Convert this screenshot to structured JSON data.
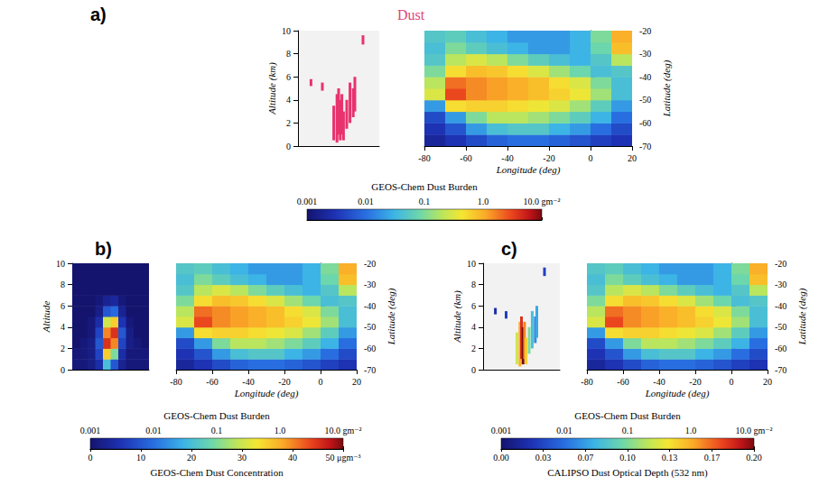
{
  "chart_data": [
    {
      "type": "heatmap",
      "panel": "a)",
      "title": "Dust",
      "x_label": "Longitude (deg)",
      "y_label": "Latitude (deg)",
      "xlim": [
        -80,
        20
      ],
      "xticks": [
        -80,
        -60,
        -40,
        -20,
        0,
        20
      ],
      "ylim": [
        -70,
        -20
      ],
      "yticks": [
        -70,
        -60,
        -50,
        -40,
        -30,
        -20
      ],
      "x_edges": [
        -80,
        -70,
        -60,
        -50,
        -40,
        -30,
        -20,
        -10,
        0,
        10,
        20
      ],
      "y_edges": [
        -70,
        -65,
        -60,
        -55,
        -50,
        -45,
        -40,
        -35,
        -30,
        -25,
        -20
      ],
      "values": [
        [
          0.002,
          0.003,
          0.005,
          0.008,
          0.01,
          0.01,
          0.008,
          0.006,
          0.004,
          0.003
        ],
        [
          0.003,
          0.006,
          0.02,
          0.04,
          0.05,
          0.05,
          0.03,
          0.02,
          0.01,
          0.005
        ],
        [
          0.005,
          0.02,
          0.1,
          0.2,
          0.2,
          0.15,
          0.1,
          0.06,
          0.03,
          0.01
        ],
        [
          0.02,
          0.5,
          0.6,
          0.6,
          0.5,
          0.4,
          0.3,
          0.15,
          0.06,
          0.02
        ],
        [
          0.3,
          3.0,
          1.5,
          1.2,
          1.0,
          0.8,
          0.6,
          0.4,
          0.15,
          0.04
        ],
        [
          0.2,
          2.0,
          1.5,
          1.2,
          1.0,
          0.8,
          0.5,
          0.3,
          0.1,
          0.04
        ],
        [
          0.1,
          0.5,
          0.8,
          0.7,
          0.5,
          0.3,
          0.15,
          0.08,
          0.04,
          0.05
        ],
        [
          0.05,
          0.2,
          0.3,
          0.2,
          0.1,
          0.06,
          0.04,
          0.03,
          0.05,
          0.2
        ],
        [
          0.04,
          0.1,
          0.06,
          0.04,
          0.03,
          0.02,
          0.02,
          0.03,
          0.08,
          0.8
        ],
        [
          0.05,
          0.06,
          0.04,
          0.03,
          0.02,
          0.02,
          0.02,
          0.03,
          0.1,
          1.0
        ]
      ],
      "curtain": {
        "type": "bar",
        "y_label": "Altitude (km)",
        "xlim": [
          -70,
          -20
        ],
        "ylim": [
          0,
          10
        ],
        "yticks": [
          0,
          2,
          4,
          6,
          8,
          10
        ],
        "tick_labels": "y",
        "x": [
          -62,
          -55,
          -48,
          -46,
          -45,
          -44,
          -43,
          -42,
          -40,
          -38,
          -36,
          -35,
          -30
        ],
        "bottom": [
          5.2,
          4.8,
          0.5,
          0.3,
          1.0,
          0.5,
          1.0,
          0.5,
          1.5,
          2.0,
          2.5,
          3.0,
          8.8
        ],
        "top": [
          5.8,
          5.5,
          3.5,
          4.5,
          5.0,
          4.0,
          4.5,
          3.0,
          4.0,
          5.5,
          5.0,
          6.0,
          9.6
        ],
        "color": "#e8336e"
      },
      "colorbars": [
        {
          "label": "GEOS-Chem Dust Burden",
          "lim": [
            0.001,
            10
          ],
          "log": true,
          "ticks": [
            0.001,
            0.01,
            0.1,
            {
              "value": 1,
              "label": "1.0"
            },
            {
              "value": 10,
              "label": "10.0 gm⁻²"
            }
          ]
        }
      ]
    },
    {
      "type": "heatmap",
      "panel": "b)",
      "x_label": "Longitude (deg)",
      "y_label": "Latitude (deg)",
      "xlim": [
        -80,
        20
      ],
      "xticks": [
        -80,
        -60,
        -40,
        -20,
        0,
        20
      ],
      "ylim": [
        -70,
        -20
      ],
      "yticks": [
        -70,
        -60,
        -50,
        -40,
        -30,
        -20
      ],
      "x_edges": [
        -80,
        -70,
        -60,
        -50,
        -40,
        -30,
        -20,
        -10,
        0,
        10,
        20
      ],
      "y_edges": [
        -70,
        -65,
        -60,
        -55,
        -50,
        -45,
        -40,
        -35,
        -30,
        -25,
        -20
      ],
      "values": [
        [
          0.002,
          0.003,
          0.005,
          0.008,
          0.01,
          0.01,
          0.008,
          0.006,
          0.004,
          0.003
        ],
        [
          0.003,
          0.006,
          0.02,
          0.04,
          0.05,
          0.05,
          0.03,
          0.02,
          0.01,
          0.005
        ],
        [
          0.005,
          0.02,
          0.1,
          0.2,
          0.2,
          0.15,
          0.1,
          0.06,
          0.03,
          0.01
        ],
        [
          0.02,
          0.5,
          0.6,
          0.6,
          0.5,
          0.4,
          0.3,
          0.15,
          0.06,
          0.02
        ],
        [
          0.3,
          3.0,
          1.5,
          1.2,
          1.0,
          0.8,
          0.6,
          0.4,
          0.15,
          0.04
        ],
        [
          0.2,
          2.0,
          1.5,
          1.2,
          1.0,
          0.8,
          0.5,
          0.3,
          0.1,
          0.04
        ],
        [
          0.1,
          0.5,
          0.8,
          0.7,
          0.5,
          0.3,
          0.15,
          0.08,
          0.04,
          0.05
        ],
        [
          0.05,
          0.2,
          0.3,
          0.2,
          0.1,
          0.06,
          0.04,
          0.03,
          0.05,
          0.2
        ],
        [
          0.04,
          0.1,
          0.06,
          0.04,
          0.03,
          0.02,
          0.02,
          0.03,
          0.08,
          0.8
        ],
        [
          0.05,
          0.06,
          0.04,
          0.03,
          0.02,
          0.02,
          0.02,
          0.03,
          0.1,
          1.0
        ]
      ],
      "curtain": {
        "type": "heatmap",
        "y_label": "Altitude",
        "xlim": [
          -70,
          -20
        ],
        "ylim": [
          0,
          10
        ],
        "yticks": [
          0,
          2,
          4,
          6,
          8,
          10
        ],
        "tick_labels": "y",
        "x_edges": [
          -70,
          -65,
          -60,
          -55,
          -50,
          -45,
          -40,
          -35,
          -30,
          -25,
          -20
        ],
        "y_edges": [
          0,
          1,
          2,
          3,
          4,
          5,
          6,
          7,
          8,
          9,
          10
        ],
        "values": [
          [
            1,
            1,
            2,
            5,
            20,
            10,
            3,
            1,
            1,
            1
          ],
          [
            1,
            1,
            2,
            8,
            35,
            25,
            5,
            1,
            1,
            1
          ],
          [
            0,
            1,
            2,
            10,
            45,
            40,
            8,
            2,
            1,
            0
          ],
          [
            0,
            0,
            1,
            8,
            40,
            45,
            10,
            2,
            0,
            0
          ],
          [
            0,
            0,
            1,
            5,
            30,
            35,
            6,
            1,
            0,
            0
          ],
          [
            0,
            0,
            0,
            2,
            10,
            12,
            3,
            0,
            0,
            0
          ],
          [
            0,
            0,
            0,
            1,
            3,
            4,
            1,
            0,
            0,
            0
          ],
          [
            0,
            0,
            0,
            0,
            0,
            0,
            0,
            0,
            0,
            0
          ],
          [
            0,
            0,
            0,
            0,
            0,
            0,
            0,
            0,
            0,
            0
          ],
          [
            0,
            0,
            0,
            0,
            0,
            0,
            0,
            0,
            0,
            0
          ]
        ]
      },
      "colorbars": [
        {
          "label": "GEOS-Chem Dust Burden",
          "lim": [
            0.001,
            10
          ],
          "log": true,
          "ticks": [
            0.001,
            0.01,
            0.1,
            {
              "value": 1,
              "label": "1.0"
            },
            {
              "value": 10,
              "label": "10.0 gm⁻²"
            }
          ]
        },
        {
          "label": "GEOS-Chem Dust Concentration",
          "lim": [
            0,
            50
          ],
          "ticks": [
            0,
            10,
            20,
            30,
            40,
            {
              "value": 50,
              "label": "50 μgm⁻³"
            }
          ]
        }
      ]
    },
    {
      "type": "heatmap",
      "panel": "c)",
      "x_label": "Longitude (deg)",
      "y_label": "Latitude (deg)",
      "xlim": [
        -80,
        20
      ],
      "xticks": [
        -80,
        -60,
        -40,
        -20,
        0,
        20
      ],
      "ylim": [
        -70,
        -20
      ],
      "yticks": [
        -70,
        -60,
        -50,
        -40,
        -30,
        -20
      ],
      "x_edges": [
        -80,
        -70,
        -60,
        -50,
        -40,
        -30,
        -20,
        -10,
        0,
        10,
        20
      ],
      "y_edges": [
        -70,
        -65,
        -60,
        -55,
        -50,
        -45,
        -40,
        -35,
        -30,
        -25,
        -20
      ],
      "values": [
        [
          0.002,
          0.003,
          0.005,
          0.008,
          0.01,
          0.01,
          0.008,
          0.006,
          0.004,
          0.003
        ],
        [
          0.003,
          0.006,
          0.02,
          0.04,
          0.05,
          0.05,
          0.03,
          0.02,
          0.01,
          0.005
        ],
        [
          0.005,
          0.02,
          0.1,
          0.2,
          0.2,
          0.15,
          0.1,
          0.06,
          0.03,
          0.01
        ],
        [
          0.02,
          0.5,
          0.6,
          0.6,
          0.5,
          0.4,
          0.3,
          0.15,
          0.06,
          0.02
        ],
        [
          0.3,
          3.0,
          1.5,
          1.2,
          1.0,
          0.8,
          0.6,
          0.4,
          0.15,
          0.04
        ],
        [
          0.2,
          2.0,
          1.5,
          1.2,
          1.0,
          0.8,
          0.5,
          0.3,
          0.1,
          0.04
        ],
        [
          0.1,
          0.5,
          0.8,
          0.7,
          0.5,
          0.3,
          0.15,
          0.08,
          0.04,
          0.05
        ],
        [
          0.05,
          0.2,
          0.3,
          0.2,
          0.1,
          0.06,
          0.04,
          0.03,
          0.05,
          0.2
        ],
        [
          0.04,
          0.1,
          0.06,
          0.04,
          0.03,
          0.02,
          0.02,
          0.03,
          0.08,
          0.8
        ],
        [
          0.05,
          0.06,
          0.04,
          0.03,
          0.02,
          0.02,
          0.02,
          0.03,
          0.1,
          1.0
        ]
      ],
      "curtain": {
        "type": "bar",
        "y_label": "Altitude (km)",
        "xlim": [
          -70,
          -20
        ],
        "ylim": [
          0,
          10
        ],
        "yticks": [
          0,
          2,
          4,
          6,
          8,
          10
        ],
        "tick_labels": "y",
        "x": [
          -62,
          -55,
          -48,
          -46,
          -45,
          -44,
          -43,
          -42,
          -40,
          -38,
          -36,
          -35,
          -30
        ],
        "bottom": [
          5.2,
          4.8,
          0.5,
          0.3,
          1.0,
          0.5,
          1.0,
          0.5,
          1.5,
          2.0,
          2.5,
          3.0,
          8.8
        ],
        "top": [
          5.8,
          5.5,
          3.5,
          4.5,
          5.0,
          4.0,
          4.5,
          3.0,
          4.0,
          5.5,
          5.0,
          6.0,
          9.6
        ],
        "values": [
          0.02,
          0.03,
          0.12,
          0.15,
          0.18,
          0.2,
          0.16,
          0.14,
          0.1,
          0.08,
          0.06,
          0.07,
          0.03
        ]
      },
      "colorbars": [
        {
          "label": "GEOS-Chem Dust Burden",
          "lim": [
            0.001,
            10
          ],
          "log": true,
          "ticks": [
            0.001,
            0.01,
            0.1,
            {
              "value": 1,
              "label": "1.0"
            },
            {
              "value": 10,
              "label": "10.0 gm⁻²"
            }
          ]
        },
        {
          "label": "CALIPSO Dust Optical Depth (532 nm)",
          "lim": [
            0,
            0.2
          ],
          "ticks": [
            {
              "value": 0,
              "label": "0.00"
            },
            {
              "value": 0.0333,
              "label": "0.03"
            },
            {
              "value": 0.0667,
              "label": "0.07"
            },
            {
              "value": 0.1,
              "label": "0.10"
            },
            {
              "value": 0.1333,
              "label": "0.13"
            },
            {
              "value": 0.1667,
              "label": "0.17"
            },
            {
              "value": 0.2,
              "label": "0.20"
            }
          ]
        }
      ]
    }
  ]
}
